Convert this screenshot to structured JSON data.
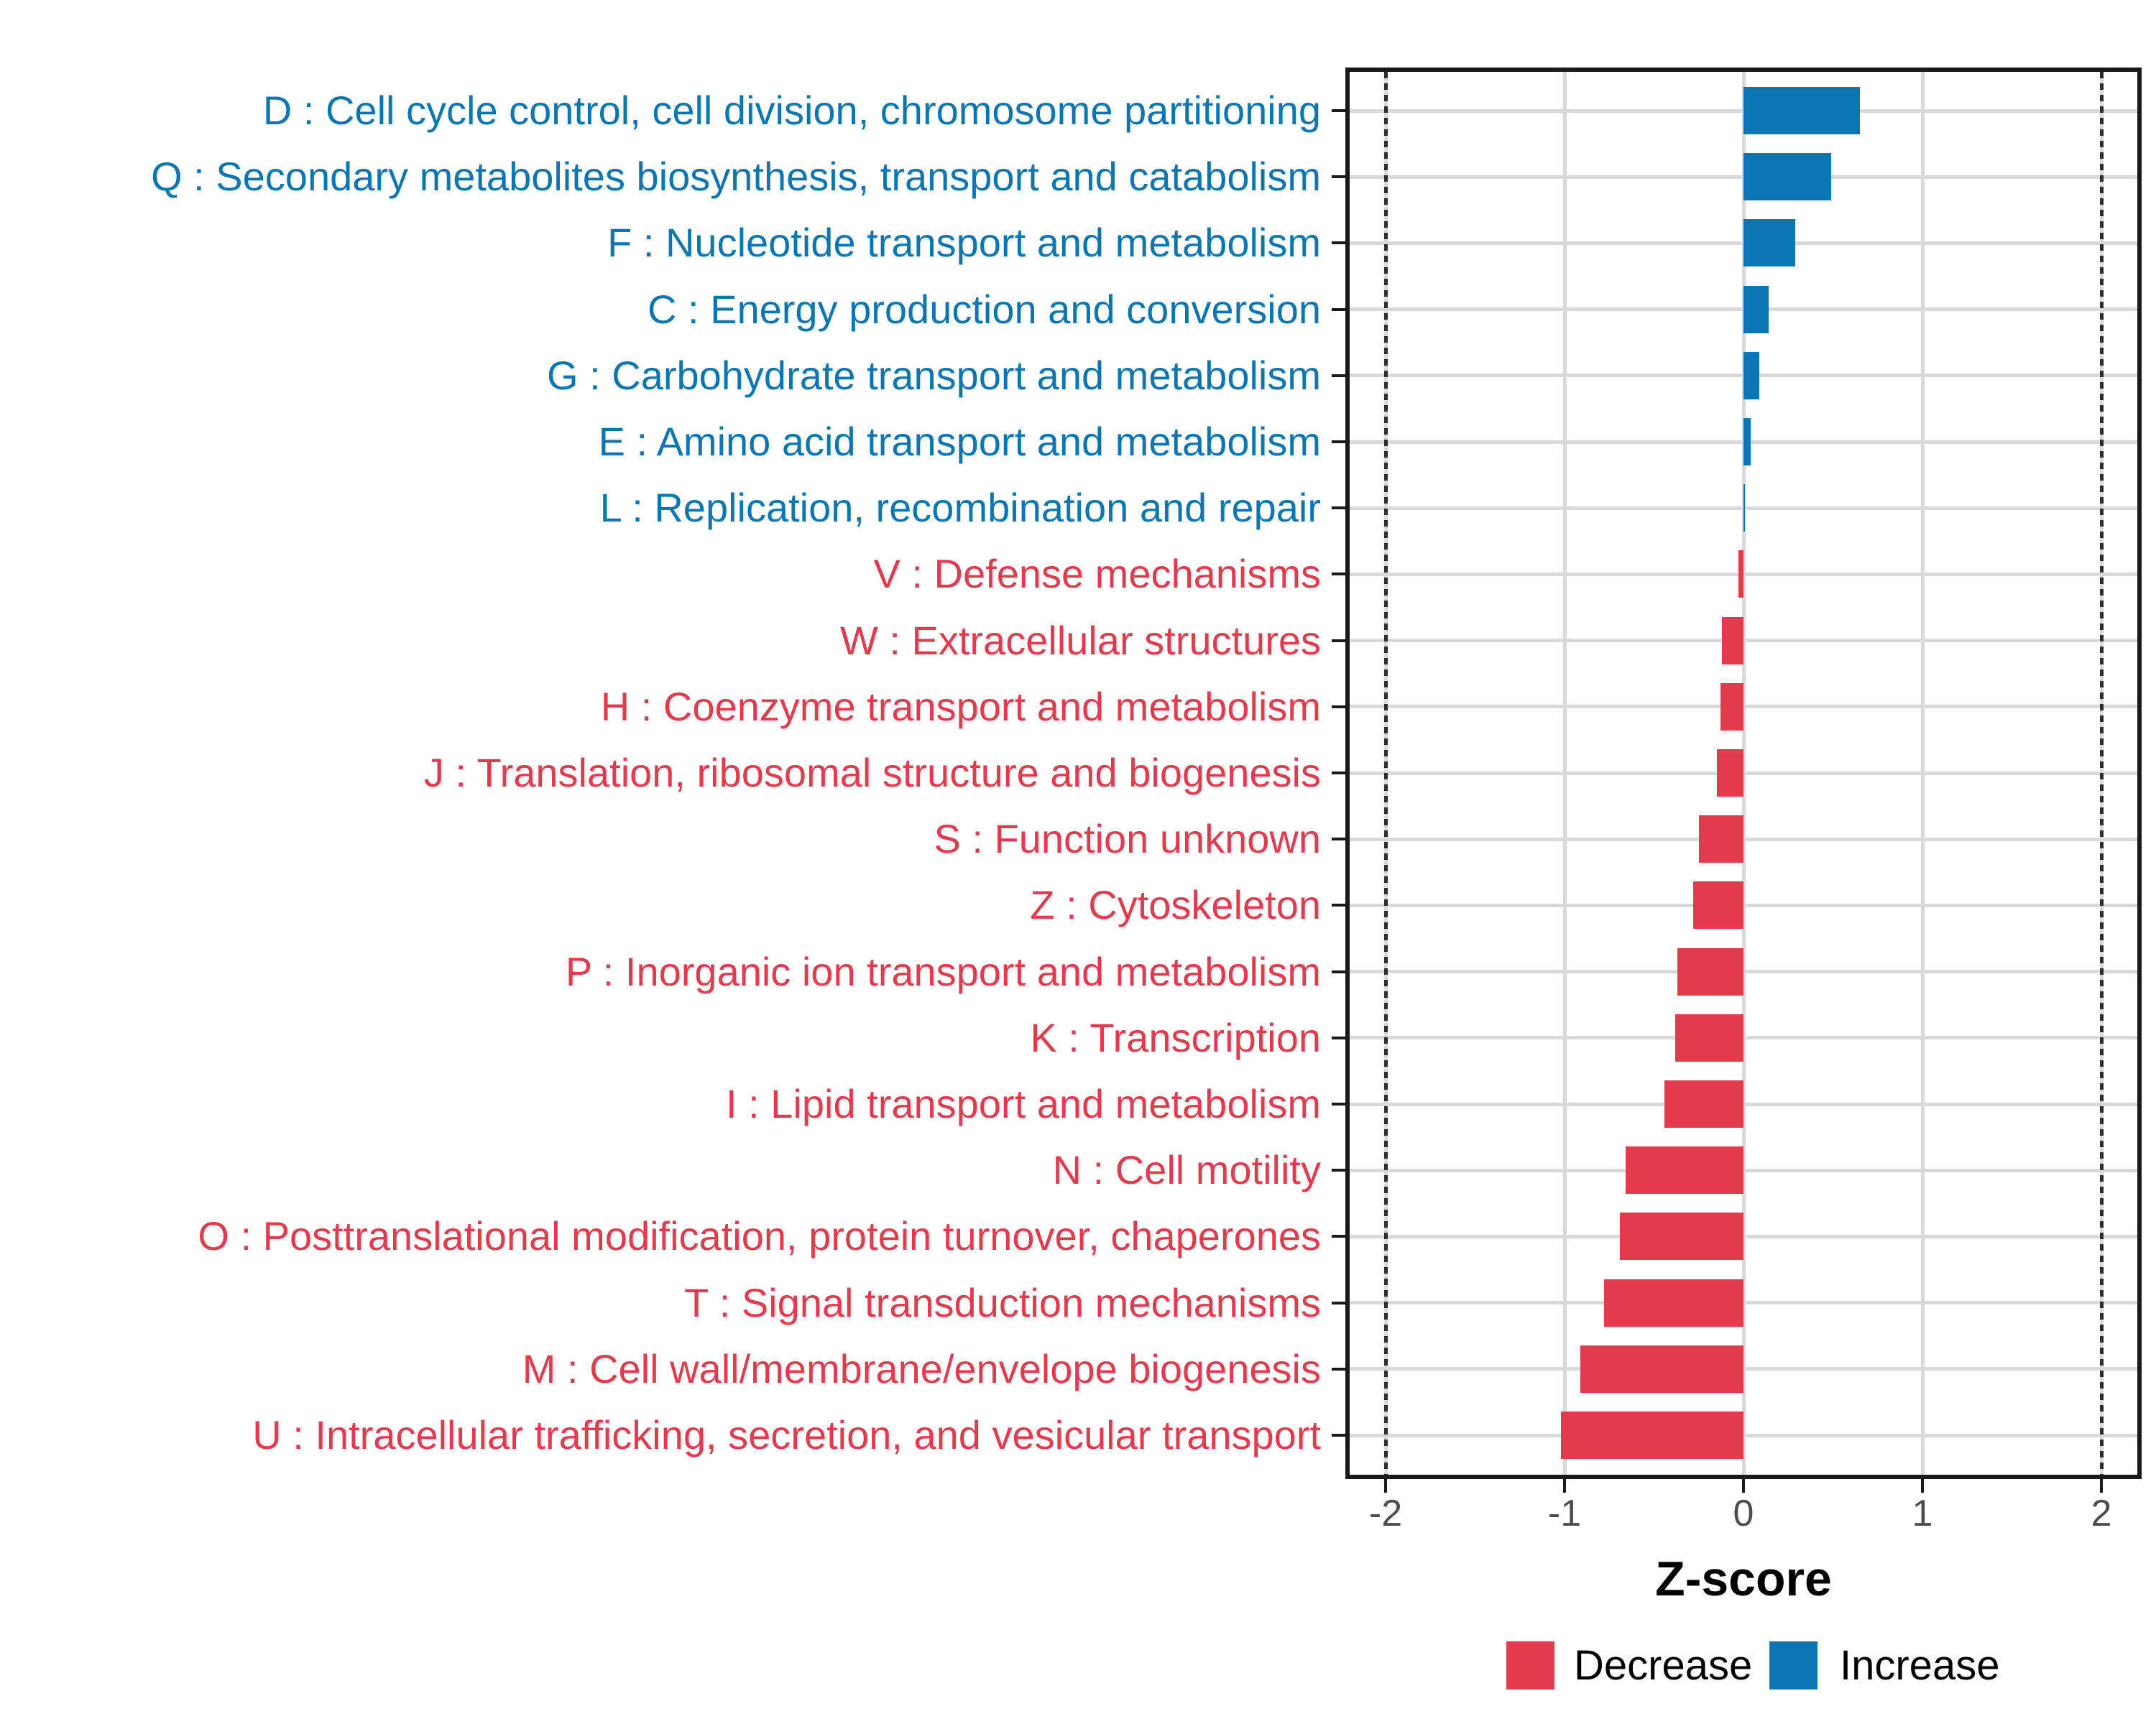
{
  "colors": {
    "decrease": "#e23b4e",
    "increase": "#0b76b2",
    "grid": "#d9d9d9",
    "axis_text": "#4d4d4d",
    "panel_border": "#1a1a1a",
    "refline": "#2e2e2e",
    "background": "#ffffff"
  },
  "chart_data": {
    "type": "bar",
    "orientation": "horizontal",
    "title": "",
    "xlabel": "Z-score",
    "ylabel": "",
    "xlim": [
      -2.2,
      2.2
    ],
    "x_ticks": [
      -2,
      -1,
      0,
      1,
      2
    ],
    "x_tick_labels": [
      "-2",
      "-1",
      "0",
      "1",
      "2"
    ],
    "reference_lines": [
      -2,
      2
    ],
    "grid": true,
    "legend_position": "bottom",
    "legend": [
      {
        "label": "Decrease",
        "key": "decrease"
      },
      {
        "label": "Increase",
        "key": "increase"
      }
    ],
    "bars": [
      {
        "label": "D : Cell cycle control, cell division, chromosome partitioning",
        "value": 0.65,
        "group": "Increase"
      },
      {
        "label": "Q : Secondary metabolites biosynthesis, transport and catabolism",
        "value": 0.49,
        "group": "Increase"
      },
      {
        "label": "F : Nucleotide transport and metabolism",
        "value": 0.29,
        "group": "Increase"
      },
      {
        "label": "C : Energy production and conversion",
        "value": 0.14,
        "group": "Increase"
      },
      {
        "label": "G : Carbohydrate transport and metabolism",
        "value": 0.09,
        "group": "Increase"
      },
      {
        "label": "E : Amino acid transport and metabolism",
        "value": 0.04,
        "group": "Increase"
      },
      {
        "label": "L : Replication, recombination and repair",
        "value": 0.01,
        "group": "Increase"
      },
      {
        "label": "V : Defense mechanisms",
        "value": -0.03,
        "group": "Decrease"
      },
      {
        "label": "W : Extracellular structures",
        "value": -0.12,
        "group": "Decrease"
      },
      {
        "label": "H : Coenzyme transport and metabolism",
        "value": -0.13,
        "group": "Decrease"
      },
      {
        "label": "J : Translation, ribosomal structure and biogenesis",
        "value": -0.15,
        "group": "Decrease"
      },
      {
        "label": "S : Function unknown",
        "value": -0.25,
        "group": "Decrease"
      },
      {
        "label": "Z : Cytoskeleton",
        "value": -0.28,
        "group": "Decrease"
      },
      {
        "label": "P : Inorganic ion transport and metabolism",
        "value": -0.37,
        "group": "Decrease"
      },
      {
        "label": "K : Transcription",
        "value": -0.38,
        "group": "Decrease"
      },
      {
        "label": "I : Lipid transport and metabolism",
        "value": -0.44,
        "group": "Decrease"
      },
      {
        "label": "N : Cell motility",
        "value": -0.66,
        "group": "Decrease"
      },
      {
        "label": "O : Posttranslational modification, protein turnover, chaperones",
        "value": -0.69,
        "group": "Decrease"
      },
      {
        "label": "T : Signal transduction mechanisms",
        "value": -0.78,
        "group": "Decrease"
      },
      {
        "label": "M : Cell wall/membrane/envelope biogenesis",
        "value": -0.91,
        "group": "Decrease"
      },
      {
        "label": "U : Intracellular trafficking, secretion, and vesicular transport",
        "value": -1.02,
        "group": "Decrease"
      }
    ]
  }
}
